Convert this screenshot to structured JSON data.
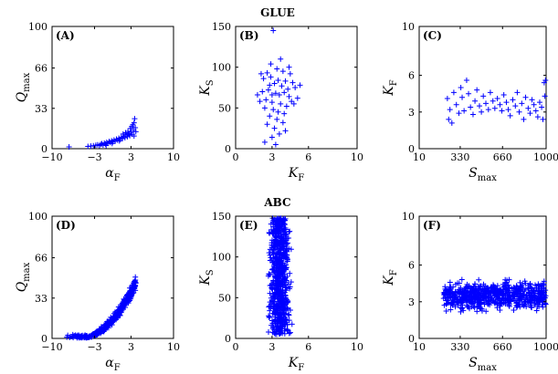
{
  "figure": {
    "group_titles": [
      "GLUE",
      "ABC"
    ],
    "marker_color": "#0000ff"
  },
  "chart_data": [
    {
      "panel": "(A)",
      "group": "GLUE",
      "type": "scatter",
      "xlabel": {
        "base": "α",
        "sub": "F"
      },
      "ylabel": {
        "base": "Q",
        "sub": "max"
      },
      "xlim": [
        -10,
        10
      ],
      "ylim": [
        0,
        100
      ],
      "xticks": [
        "−10",
        "−3",
        "3",
        "10"
      ],
      "xtick_values": [
        -10,
        -3,
        3,
        10
      ],
      "yticks": [
        "0",
        "33",
        "66",
        "100"
      ],
      "ytick_values": [
        0,
        33,
        66,
        100
      ],
      "points": [
        [
          -7.2,
          1.5
        ],
        [
          -4.1,
          1.9
        ],
        [
          -3.6,
          2.1
        ],
        [
          -3.2,
          2.4
        ],
        [
          -2.8,
          2.8
        ],
        [
          -2.5,
          3.2
        ],
        [
          -2.2,
          2.6
        ],
        [
          -2.0,
          3.5
        ],
        [
          -1.8,
          4.1
        ],
        [
          -1.6,
          3.0
        ],
        [
          -1.4,
          4.6
        ],
        [
          -1.2,
          3.8
        ],
        [
          -1.0,
          5.2
        ],
        [
          -0.8,
          4.4
        ],
        [
          -0.6,
          5.9
        ],
        [
          -0.4,
          5.0
        ],
        [
          -0.2,
          6.4
        ],
        [
          0.0,
          5.6
        ],
        [
          0.2,
          7.1
        ],
        [
          0.4,
          6.2
        ],
        [
          0.6,
          7.8
        ],
        [
          0.8,
          6.9
        ],
        [
          1.0,
          8.6
        ],
        [
          1.2,
          7.5
        ],
        [
          1.4,
          9.4
        ],
        [
          1.6,
          8.3
        ],
        [
          1.8,
          10.2
        ],
        [
          2.0,
          9.0
        ],
        [
          2.2,
          11.3
        ],
        [
          2.4,
          9.8
        ],
        [
          2.6,
          12.4
        ],
        [
          2.8,
          10.6
        ],
        [
          3.0,
          13.6
        ],
        [
          3.2,
          11.8
        ],
        [
          3.4,
          15.0
        ],
        [
          2.5,
          14.2
        ],
        [
          2.9,
          16.5
        ],
        [
          3.1,
          18.1
        ],
        [
          3.3,
          19.6
        ],
        [
          3.5,
          21.2
        ],
        [
          3.6,
          24.5
        ],
        [
          2.7,
          11.6
        ],
        [
          1.7,
          12.0
        ],
        [
          2.1,
          13.1
        ],
        [
          3.7,
          17.2
        ],
        [
          3.8,
          13.9
        ],
        [
          3.5,
          10.4
        ],
        [
          -0.1,
          4.2
        ],
        [
          1.1,
          6.3
        ],
        [
          -1.1,
          2.6
        ]
      ]
    },
    {
      "panel": "(B)",
      "group": "GLUE",
      "type": "scatter",
      "xlabel": {
        "base": "K",
        "sub": "F"
      },
      "ylabel": {
        "base": "K",
        "sub": "S"
      },
      "xlim": [
        0,
        10
      ],
      "ylim": [
        0,
        150
      ],
      "xticks": [
        "0",
        "3",
        "6",
        "10"
      ],
      "xtick_values": [
        0,
        3,
        6,
        10
      ],
      "yticks": [
        "0",
        "50",
        "100",
        "150"
      ],
      "ytick_values": [
        0,
        50,
        100,
        150
      ],
      "points": [
        [
          3.1,
          145
        ],
        [
          2.6,
          93
        ],
        [
          3.4,
          98
        ],
        [
          3.9,
          95
        ],
        [
          4.5,
          92
        ],
        [
          2.3,
          86
        ],
        [
          2.9,
          88
        ],
        [
          3.5,
          84
        ],
        [
          4.1,
          83
        ],
        [
          4.7,
          81
        ],
        [
          2.8,
          78
        ],
        [
          3.2,
          80
        ],
        [
          3.8,
          77
        ],
        [
          4.3,
          73
        ],
        [
          4.9,
          75
        ],
        [
          2.2,
          70
        ],
        [
          2.7,
          72
        ],
        [
          3.3,
          68
        ],
        [
          3.6,
          66
        ],
        [
          4.0,
          69
        ],
        [
          4.4,
          64
        ],
        [
          5.1,
          62
        ],
        [
          2.5,
          60
        ],
        [
          2.0,
          58
        ],
        [
          3.0,
          57
        ],
        [
          3.7,
          55
        ],
        [
          4.2,
          52
        ],
        [
          4.6,
          58
        ],
        [
          2.4,
          50
        ],
        [
          3.1,
          48
        ],
        [
          3.5,
          45
        ],
        [
          4.0,
          43
        ],
        [
          2.8,
          40
        ],
        [
          3.4,
          36
        ],
        [
          3.9,
          32
        ],
        [
          2.6,
          30
        ],
        [
          3.2,
          25
        ],
        [
          4.1,
          22
        ],
        [
          3.6,
          18
        ],
        [
          3.0,
          14
        ],
        [
          2.4,
          8
        ],
        [
          3.3,
          5
        ],
        [
          2.9,
          104
        ],
        [
          3.7,
          110
        ],
        [
          4.4,
          100
        ],
        [
          2.1,
          92
        ],
        [
          1.8,
          66
        ],
        [
          5.3,
          78
        ],
        [
          3.0,
          66
        ],
        [
          4.8,
          55
        ]
      ]
    },
    {
      "panel": "(C)",
      "group": "GLUE",
      "type": "scatter",
      "xlabel": {
        "base": "S",
        "sub": "max"
      },
      "ylabel": {
        "base": "K",
        "sub": "F"
      },
      "xlim": [
        10,
        1000
      ],
      "ylim": [
        0,
        10
      ],
      "xticks": [
        "10",
        "330",
        "660",
        "1000"
      ],
      "xtick_values": [
        10,
        330,
        660,
        1000
      ],
      "yticks": [
        "0",
        "3",
        "6",
        "10"
      ],
      "ytick_values": [
        0,
        3,
        6,
        10
      ],
      "points": [
        [
          230,
          4.1
        ],
        [
          240,
          2.4
        ],
        [
          250,
          3.2
        ],
        [
          265,
          2.1
        ],
        [
          280,
          4.6
        ],
        [
          300,
          3.6
        ],
        [
          320,
          2.9
        ],
        [
          335,
          5.0
        ],
        [
          345,
          4.2
        ],
        [
          360,
          3.1
        ],
        [
          380,
          5.6
        ],
        [
          395,
          4.5
        ],
        [
          410,
          3.4
        ],
        [
          430,
          2.8
        ],
        [
          445,
          3.9
        ],
        [
          460,
          4.8
        ],
        [
          480,
          3.5
        ],
        [
          495,
          3.0
        ],
        [
          510,
          4.3
        ],
        [
          530,
          3.7
        ],
        [
          550,
          3.2
        ],
        [
          565,
          4.6
        ],
        [
          585,
          3.9
        ],
        [
          600,
          3.3
        ],
        [
          620,
          4.1
        ],
        [
          640,
          3.6
        ],
        [
          655,
          3.1
        ],
        [
          670,
          4.4
        ],
        [
          690,
          3.8
        ],
        [
          705,
          3.2
        ],
        [
          720,
          2.7
        ],
        [
          740,
          4.0
        ],
        [
          760,
          3.5
        ],
        [
          775,
          4.6
        ],
        [
          790,
          3.0
        ],
        [
          810,
          3.7
        ],
        [
          825,
          2.4
        ],
        [
          840,
          4.2
        ],
        [
          860,
          3.3
        ],
        [
          875,
          2.9
        ],
        [
          890,
          4.0
        ],
        [
          905,
          3.6
        ],
        [
          920,
          3.1
        ],
        [
          935,
          2.6
        ],
        [
          950,
          3.8
        ],
        [
          965,
          3.4
        ],
        [
          975,
          2.4
        ],
        [
          985,
          5.4
        ],
        [
          995,
          5.6
        ],
        [
          990,
          4.3
        ]
      ]
    },
    {
      "panel": "(D)",
      "group": "ABC",
      "type": "scatter",
      "xlabel": {
        "base": "α",
        "sub": "F"
      },
      "ylabel": {
        "base": "Q",
        "sub": "max"
      },
      "xlim": [
        -10,
        10
      ],
      "ylim": [
        0,
        100
      ],
      "xticks": [
        "−10",
        "−3",
        "3",
        "10"
      ],
      "xtick_values": [
        -10,
        -3,
        3,
        10
      ],
      "yticks": [
        "0",
        "33",
        "66",
        "100"
      ],
      "ytick_values": [
        0,
        33,
        66,
        100
      ],
      "cloud": {
        "count": 420,
        "x_range": [
          -8,
          3.8
        ],
        "y_base": 1.5,
        "y_slope": 1.3,
        "y_curve": 0.55,
        "spread": 6
      }
    },
    {
      "panel": "(E)",
      "group": "ABC",
      "type": "scatter",
      "xlabel": {
        "base": "K",
        "sub": "F"
      },
      "ylabel": {
        "base": "K",
        "sub": "S"
      },
      "xlim": [
        0,
        10
      ],
      "ylim": [
        0,
        150
      ],
      "xticks": [
        "0",
        "3",
        "6",
        "10"
      ],
      "xtick_values": [
        0,
        3,
        6,
        10
      ],
      "yticks": [
        "0",
        "50",
        "100",
        "150"
      ],
      "ytick_values": [
        0,
        50,
        100,
        150
      ],
      "cloud": {
        "count": 700,
        "x_center": 3.6,
        "x_spread": 1.9,
        "y_range": [
          5,
          148
        ]
      }
    },
    {
      "panel": "(F)",
      "group": "ABC",
      "type": "scatter",
      "xlabel": {
        "base": "S",
        "sub": "max"
      },
      "ylabel": {
        "base": "K",
        "sub": "F"
      },
      "xlim": [
        10,
        1000
      ],
      "ylim": [
        0,
        10
      ],
      "xticks": [
        "10",
        "330",
        "660",
        "1000"
      ],
      "xtick_values": [
        10,
        330,
        660,
        1000
      ],
      "yticks": [
        "0",
        "3",
        "6",
        "10"
      ],
      "ytick_values": [
        0,
        3,
        6,
        10
      ],
      "cloud": {
        "count": 700,
        "x_range": [
          200,
          1000
        ],
        "y_range": [
          1.8,
          5.8
        ]
      }
    }
  ]
}
